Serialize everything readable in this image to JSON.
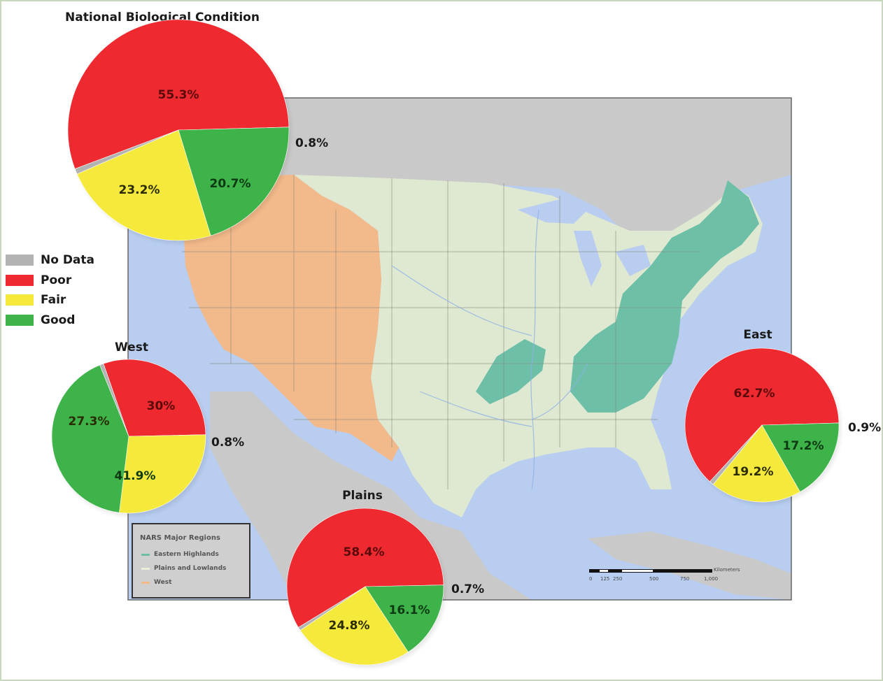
{
  "legend": {
    "items": [
      {
        "label": "No Data",
        "color": "#b3b3b3"
      },
      {
        "label": "Poor",
        "color": "#ee2a30"
      },
      {
        "label": "Fair",
        "color": "#f5ea3b"
      },
      {
        "label": "Good",
        "color": "#3db34a"
      }
    ]
  },
  "map_inset": {
    "title": "NARS Major Regions",
    "items": [
      {
        "label": "Eastern Highlands",
        "color": "#6dbfa8"
      },
      {
        "label": "Plains and Lowlands",
        "color": "#e8efd9"
      },
      {
        "label": "West",
        "color": "#f2b98a"
      }
    ]
  },
  "scale_bar": {
    "unit": "Kilometers",
    "ticks": [
      "0",
      "125",
      "250",
      "500",
      "750",
      "1,000"
    ]
  },
  "colors": {
    "no_data": "#b3b3b3",
    "poor": "#ee2a30",
    "fair": "#f5ea3b",
    "good": "#3db34a",
    "water": "#b8cdf0",
    "land_other": "#c9c9c9",
    "plains": "#dfe8d0",
    "west": "#f2b98a",
    "eastern_highlands": "#6dbfa8"
  },
  "chart_data": [
    {
      "type": "pie",
      "title": "National Biological Condition",
      "slices": [
        {
          "category": "Poor",
          "value": 55.3,
          "label": "55.3%"
        },
        {
          "category": "Good",
          "value": 20.7,
          "label": "20.7%"
        },
        {
          "category": "Fair",
          "value": 23.2,
          "label": "23.2%"
        },
        {
          "category": "No Data",
          "value": 0.8,
          "label": "0.8%"
        }
      ]
    },
    {
      "type": "pie",
      "title": "West",
      "slices": [
        {
          "category": "Poor",
          "value": 30,
          "label": "30%"
        },
        {
          "category": "Fair",
          "value": 27.3,
          "label": "27.3%"
        },
        {
          "category": "Good",
          "value": 41.9,
          "label": "41.9%"
        },
        {
          "category": "No Data",
          "value": 0.8,
          "label": "0.8%"
        }
      ]
    },
    {
      "type": "pie",
      "title": "Plains",
      "slices": [
        {
          "category": "Poor",
          "value": 58.4,
          "label": "58.4%"
        },
        {
          "category": "Good",
          "value": 16.1,
          "label": "16.1%"
        },
        {
          "category": "Fair",
          "value": 24.8,
          "label": "24.8%"
        },
        {
          "category": "No Data",
          "value": 0.7,
          "label": "0.7%"
        }
      ]
    },
    {
      "type": "pie",
      "title": "East",
      "slices": [
        {
          "category": "Poor",
          "value": 62.7,
          "label": "62.7%"
        },
        {
          "category": "Good",
          "value": 17.2,
          "label": "17.2%"
        },
        {
          "category": "Fair",
          "value": 19.2,
          "label": "19.2%"
        },
        {
          "category": "No Data",
          "value": 0.9,
          "label": "0.9%"
        }
      ]
    }
  ]
}
